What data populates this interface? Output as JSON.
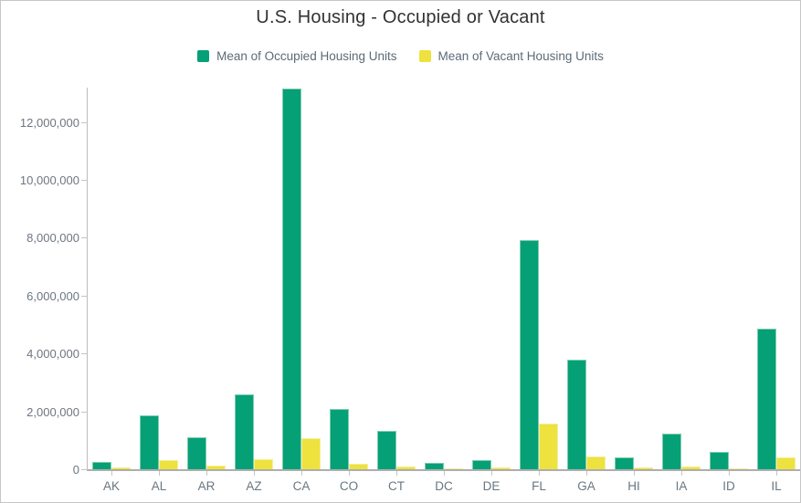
{
  "chart_data": {
    "type": "bar",
    "title": "U.S. Housing - Occupied or Vacant",
    "categories": [
      "AK",
      "AL",
      "AR",
      "AZ",
      "CA",
      "CO",
      "CT",
      "DC",
      "DE",
      "FL",
      "GA",
      "HI",
      "IA",
      "ID",
      "IL"
    ],
    "series": [
      {
        "name": "Mean of Occupied Housing Units",
        "color": "#06a077",
        "values": [
          260000,
          1870000,
          1100000,
          2580000,
          13150000,
          2090000,
          1330000,
          230000,
          330000,
          7930000,
          3800000,
          400000,
          1220000,
          610000,
          4850000
        ]
      },
      {
        "name": "Mean of Vacant Housing Units",
        "color": "#ede23e",
        "values": [
          80000,
          330000,
          140000,
          360000,
          1070000,
          180000,
          90000,
          30000,
          60000,
          1580000,
          450000,
          50000,
          110000,
          40000,
          420000
        ]
      }
    ],
    "xlabel": "",
    "ylabel": "",
    "ylim": [
      0,
      13220000
    ],
    "yticks": [
      0,
      2000000,
      4000000,
      6000000,
      8000000,
      10000000,
      12000000
    ],
    "ytick_labels": [
      "0",
      "2,000,000",
      "4,000,000",
      "6,000,000",
      "8,000,000",
      "10,000,000",
      "12,000,000"
    ],
    "grid": false,
    "legend_position": "top"
  },
  "colors": {
    "occupied": "#06a077",
    "occupied_edge": "#7fcdad",
    "vacant": "#ede23e",
    "vacant_edge": "#f5ee9c",
    "axis_line": "#bdbdbd",
    "tick_text": "#6a7680",
    "title_text": "#323232",
    "frame_border": "#c6c6c6"
  }
}
